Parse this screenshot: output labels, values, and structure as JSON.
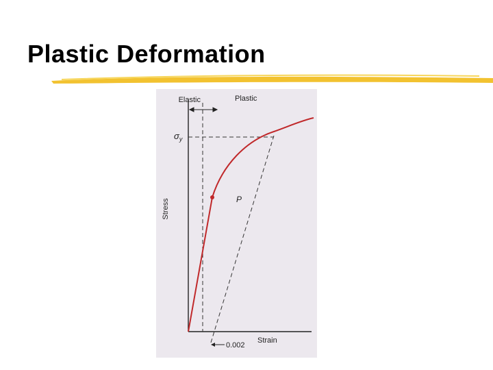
{
  "header": {
    "title": "Plastic Deformation"
  },
  "figure": {
    "region_labels": {
      "elastic": "Elastic",
      "plastic": "Plastic"
    },
    "yield_stress": {
      "symbol": "σ",
      "subscript": "y"
    },
    "point_label": "P",
    "y_axis_label": "Stress",
    "x_axis_label": "Strain",
    "offset_label": "0.002"
  }
}
